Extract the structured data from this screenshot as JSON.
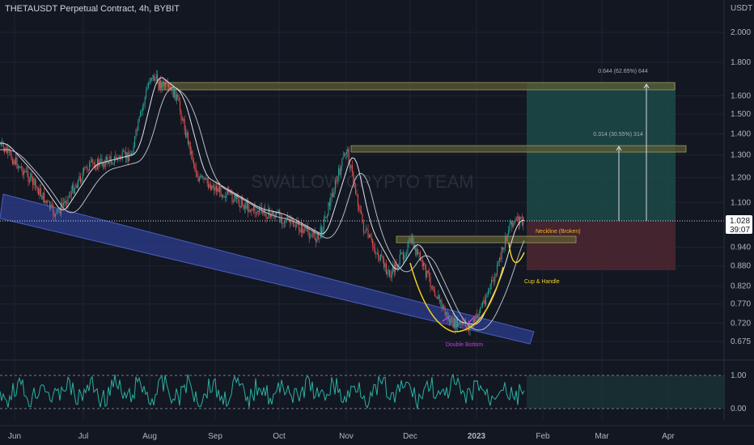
{
  "header": {
    "title": "THETAUSDT Perpetual Contract, 4h, BYBIT"
  },
  "price_scale": {
    "unit": "USDT"
  },
  "watermark": "SWALLOW CRYPTO TEAM",
  "current_price": {
    "value": "1.028",
    "countdown": "39:07"
  },
  "annotations": {
    "target2": "0.644 (62.65%) 644",
    "target1": "0.314 (30.55%) 314",
    "neckline": "Neckline (Broken)",
    "cup_handle": "Cup & Handle",
    "double_bottom": "Double Bottom"
  },
  "colors": {
    "background": "#131722",
    "candle_up": "#26a69a",
    "candle_down": "#ef5350",
    "channel": "#2c3e8f",
    "zone": "#6b6b3a",
    "profit_zone": "#1d4a48",
    "stop_zone": "#4a2630",
    "cup": "#f2d11c",
    "oscillator": "#2ab1a0",
    "double_bottom_text": "#c53fd9"
  },
  "chart_data": {
    "type": "candlestick",
    "title": "THETAUSDT Perpetual Contract, 4h, BYBIT",
    "xlabel": "",
    "ylabel": "USDT",
    "x_ticks": [
      "Jun",
      "Jul",
      "Aug",
      "Sep",
      "Oct",
      "Nov",
      "Dec",
      "2023",
      "Feb",
      "Mar",
      "Apr"
    ],
    "y_ticks": [
      "2.000",
      "1.800",
      "1.600",
      "1.500",
      "1.400",
      "1.300",
      "1.200",
      "1.100",
      "0.940",
      "0.880",
      "0.820",
      "0.770",
      "0.720",
      "0.675"
    ],
    "y_scale": "log",
    "ylim": [
      0.64,
      2.2
    ],
    "price_path_approx": [
      {
        "date": "2022-05-25",
        "price": 1.35
      },
      {
        "date": "2022-06-08",
        "price": 1.2
      },
      {
        "date": "2022-06-20",
        "price": 1.05
      },
      {
        "date": "2022-07-05",
        "price": 1.25
      },
      {
        "date": "2022-07-25",
        "price": 1.3
      },
      {
        "date": "2022-08-03",
        "price": 1.72
      },
      {
        "date": "2022-08-15",
        "price": 1.6
      },
      {
        "date": "2022-08-25",
        "price": 1.2
      },
      {
        "date": "2022-09-20",
        "price": 1.07
      },
      {
        "date": "2022-10-01",
        "price": 1.05
      },
      {
        "date": "2022-10-20",
        "price": 0.97
      },
      {
        "date": "2022-11-02",
        "price": 1.33
      },
      {
        "date": "2022-11-10",
        "price": 1.0
      },
      {
        "date": "2022-11-22",
        "price": 0.85
      },
      {
        "date": "2022-12-02",
        "price": 0.96
      },
      {
        "date": "2022-12-20",
        "price": 0.72
      },
      {
        "date": "2022-12-30",
        "price": 0.71
      },
      {
        "date": "2023-01-10",
        "price": 0.85
      },
      {
        "date": "2023-01-14",
        "price": 0.95
      },
      {
        "date": "2023-01-17",
        "price": 1.028
      }
    ],
    "levels": {
      "resistance_high": 1.65,
      "resistance_mid": 1.31,
      "neckline": 0.96,
      "entry": 1.028,
      "stop_zone_low": 0.87,
      "target1": 1.342,
      "target2": 1.672
    },
    "oscillator": {
      "y_ticks": [
        "1.00",
        "0.00"
      ],
      "upper": 1.0,
      "lower": 0.0
    }
  }
}
